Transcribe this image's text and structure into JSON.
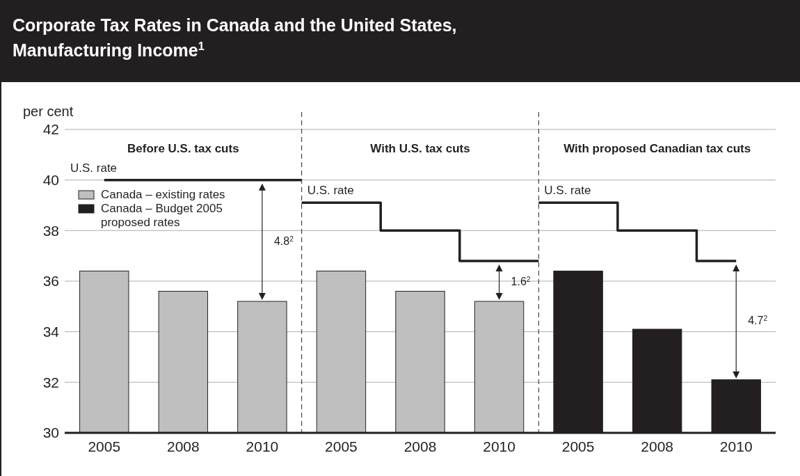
{
  "chart_data": {
    "type": "bar",
    "title": "Corporate Tax Rates in Canada and the United States, Manufacturing Income$^{1}$",
    "ylabel": "per cent",
    "categories": [
      "2005",
      "2008",
      "2010",
      "2005",
      "2008",
      "2010",
      "2005",
      "2008",
      "2010"
    ],
    "series": [
      {
        "name": "Canada – existing rates",
        "color": "#bfbfbf",
        "values": [
          36.4,
          35.6,
          35.2,
          36.4,
          35.6,
          35.2,
          null,
          null,
          null
        ]
      },
      {
        "name": "Canada – Budget 2005 proposed rates",
        "color": "#231f20",
        "values": [
          null,
          null,
          null,
          null,
          null,
          null,
          36.4,
          34.1,
          32.1
        ]
      },
      {
        "name": "U.S. rate",
        "type": "step",
        "color": "#231f20",
        "values": [
          40,
          40,
          40,
          39.1,
          38,
          36.8,
          39.1,
          38,
          36.8
        ]
      }
    ],
    "stacked": true,
    "ylim": [
      30,
      42
    ],
    "yticks": [
      30,
      32,
      34,
      36,
      38,
      40,
      42
    ],
    "grid": "y",
    "legend": "top left",
    "annotations": [
      "Before U.S. tax cuts",
      "With U.S. tax cuts",
      "With proposed Canadian tax cuts",
      "4.8$^{2}$",
      "1.6$^{2}$",
      "4.7$^{2}$"
    ]
  }
}
